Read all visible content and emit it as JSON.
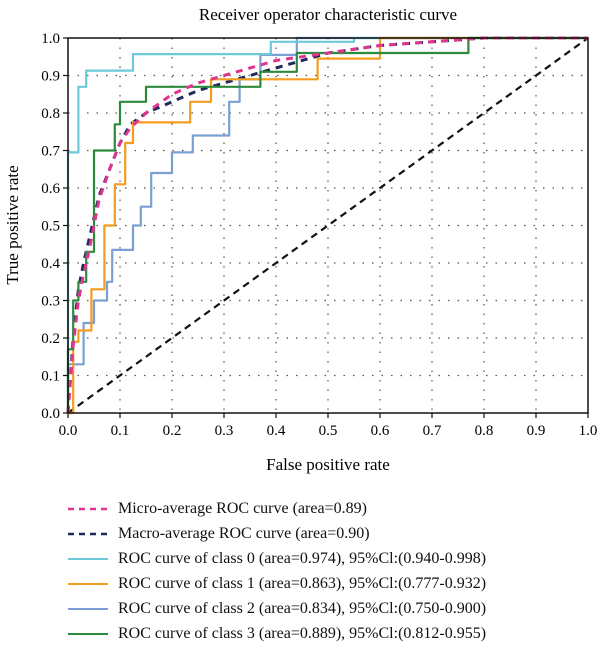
{
  "chart_data": {
    "type": "line",
    "title": "Receiver operator characteristic curve",
    "xlabel": "False positive rate",
    "ylabel": "True positive rate",
    "xlim": [
      0.0,
      1.0
    ],
    "ylim": [
      0.0,
      1.0
    ],
    "xticks": [
      "0.0",
      "0.1",
      "0.2",
      "0.3",
      "0.4",
      "0.5",
      "0.6",
      "0.7",
      "0.8",
      "0.9",
      "1.0"
    ],
    "yticks": [
      "0.0",
      "0.1",
      "0.2",
      "0.3",
      "0.4",
      "0.5",
      "0.6",
      "0.7",
      "0.8",
      "0.9",
      "1.0"
    ],
    "grid": "dotted",
    "legend_position": "below",
    "series": [
      {
        "name": "Micro-average ROC curve (area=0.89)",
        "color": "#e0358f",
        "style": "dashed",
        "x": [
          0.0,
          0.01,
          0.02,
          0.03,
          0.04,
          0.05,
          0.06,
          0.08,
          0.1,
          0.12,
          0.15,
          0.2,
          0.25,
          0.3,
          0.35,
          0.4,
          0.5,
          0.6,
          0.7,
          0.8,
          1.0
        ],
        "y": [
          0.0,
          0.18,
          0.3,
          0.37,
          0.43,
          0.5,
          0.57,
          0.65,
          0.72,
          0.76,
          0.8,
          0.85,
          0.88,
          0.9,
          0.92,
          0.94,
          0.96,
          0.98,
          0.99,
          1.0,
          1.0
        ]
      },
      {
        "name": "Macro-average ROC curve (area=0.90)",
        "color": "#1f2a5a",
        "style": "dashed",
        "x": [
          0.0,
          0.01,
          0.02,
          0.03,
          0.04,
          0.05,
          0.06,
          0.08,
          0.1,
          0.12,
          0.15,
          0.2,
          0.25,
          0.3,
          0.35,
          0.4,
          0.5,
          0.6,
          0.7,
          0.8,
          1.0
        ],
        "y": [
          0.0,
          0.2,
          0.33,
          0.4,
          0.46,
          0.52,
          0.58,
          0.65,
          0.72,
          0.77,
          0.8,
          0.83,
          0.86,
          0.88,
          0.9,
          0.92,
          0.96,
          0.98,
          0.99,
          1.0,
          1.0
        ]
      },
      {
        "name": "ROC curve of class 0 (area=0.974), 95%Cl:(0.940-0.998)",
        "color": "#6cc9d9",
        "style": "solid",
        "x": [
          0.0,
          0.0,
          0.02,
          0.02,
          0.035,
          0.035,
          0.125,
          0.125,
          0.39,
          0.39,
          0.55,
          0.55,
          1.0
        ],
        "y": [
          0.0,
          0.695,
          0.695,
          0.87,
          0.87,
          0.913,
          0.913,
          0.957,
          0.957,
          0.99,
          0.99,
          1.0,
          1.0
        ]
      },
      {
        "name": "ROC curve of class 1 (area=0.863), 95%Cl:(0.777-0.932)",
        "color": "#f39c1e",
        "style": "solid",
        "x": [
          0.0,
          0.0,
          0.01,
          0.01,
          0.02,
          0.02,
          0.045,
          0.045,
          0.07,
          0.07,
          0.09,
          0.09,
          0.11,
          0.11,
          0.125,
          0.125,
          0.235,
          0.235,
          0.275,
          0.275,
          0.48,
          0.48,
          0.6,
          0.6,
          1.0
        ],
        "y": [
          0.0,
          0.0,
          0.0,
          0.19,
          0.19,
          0.22,
          0.22,
          0.33,
          0.33,
          0.5,
          0.5,
          0.61,
          0.61,
          0.72,
          0.72,
          0.775,
          0.775,
          0.83,
          0.83,
          0.89,
          0.89,
          0.945,
          0.945,
          1.0,
          1.0
        ]
      },
      {
        "name": "ROC curve of class 2 (area=0.834), 95%Cl:(0.750-0.900)",
        "color": "#7b9fd4",
        "style": "solid",
        "x": [
          0.0,
          0.0,
          0.005,
          0.005,
          0.03,
          0.03,
          0.05,
          0.05,
          0.075,
          0.075,
          0.085,
          0.085,
          0.125,
          0.125,
          0.14,
          0.14,
          0.16,
          0.16,
          0.2,
          0.2,
          0.24,
          0.24,
          0.31,
          0.31,
          0.33,
          0.33,
          0.37,
          0.37,
          0.44,
          0.44,
          1.0
        ],
        "y": [
          0.0,
          0.13,
          0.13,
          0.13,
          0.13,
          0.24,
          0.24,
          0.3,
          0.3,
          0.35,
          0.35,
          0.435,
          0.435,
          0.5,
          0.5,
          0.55,
          0.55,
          0.64,
          0.64,
          0.695,
          0.695,
          0.74,
          0.74,
          0.83,
          0.83,
          0.89,
          0.89,
          0.955,
          0.955,
          1.0,
          1.0
        ]
      },
      {
        "name": "ROC curve of class 3 (area=0.889), 95%Cl:(0.812-0.955)",
        "color": "#2c8a3c",
        "style": "solid",
        "x": [
          0.0,
          0.0,
          0.01,
          0.01,
          0.02,
          0.02,
          0.035,
          0.035,
          0.05,
          0.05,
          0.09,
          0.09,
          0.1,
          0.1,
          0.15,
          0.15,
          0.2,
          0.2,
          0.27,
          0.27,
          0.37,
          0.37,
          0.44,
          0.44,
          0.77,
          0.77,
          1.0
        ],
        "y": [
          0.0,
          0.17,
          0.17,
          0.3,
          0.3,
          0.35,
          0.35,
          0.43,
          0.43,
          0.7,
          0.7,
          0.77,
          0.77,
          0.83,
          0.83,
          0.87,
          0.87,
          0.87,
          0.87,
          0.87,
          0.87,
          0.91,
          0.91,
          0.96,
          0.96,
          1.0,
          1.0
        ]
      },
      {
        "name": "",
        "color": "#111111",
        "style": "dashed",
        "x": [
          0.0,
          1.0
        ],
        "y": [
          0.0,
          1.0
        ]
      }
    ]
  }
}
